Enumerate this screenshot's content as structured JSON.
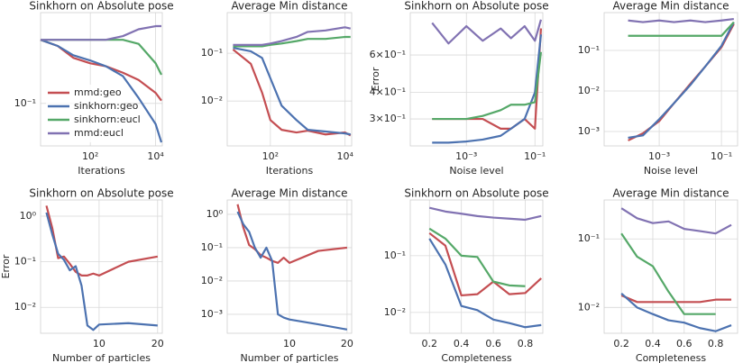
{
  "chart_data": [
    {
      "type": "line",
      "title": "Sinkhorn on Absolute pose",
      "xlabel": "Iterations",
      "xscale": "log",
      "yscale": "log",
      "grid": true,
      "legend": "lower left",
      "x": [
        3,
        10,
        30,
        100,
        300,
        1000,
        3000,
        10000,
        15000
      ],
      "xlim": [
        3,
        16000
      ],
      "ylim": [
        0.048,
        0.48
      ],
      "xticks": [
        {
          "value": 100,
          "label": "10²"
        },
        {
          "value": 10000,
          "label": "10⁴"
        }
      ],
      "yticks": [
        {
          "value": 0.1,
          "label": "10⁻¹"
        }
      ],
      "series": [
        {
          "name": "mmd:geo",
          "color": "#c44e52",
          "values": [
            0.3,
            0.27,
            0.22,
            0.2,
            0.19,
            0.17,
            0.15,
            0.12,
            0.105
          ]
        },
        {
          "name": "sinkhorn:geo",
          "color": "#4c72b0",
          "values": [
            0.3,
            0.27,
            0.23,
            0.21,
            0.19,
            0.16,
            0.11,
            0.07,
            0.051
          ]
        },
        {
          "name": "sinkhorn:eucl",
          "color": "#55a868",
          "values": [
            0.3,
            0.3,
            0.3,
            0.3,
            0.3,
            0.3,
            0.28,
            0.2,
            0.164
          ]
        },
        {
          "name": "mmd:eucl",
          "color": "#8172b2",
          "values": [
            0.3,
            0.3,
            0.3,
            0.3,
            0.3,
            0.32,
            0.36,
            0.38,
            0.38
          ]
        }
      ]
    },
    {
      "type": "line",
      "title": "Average Min distance",
      "xlabel": "Iterations",
      "xscale": "log",
      "yscale": "log",
      "grid": true,
      "x": [
        10,
        30,
        60,
        100,
        200,
        500,
        1000,
        3000,
        10000,
        14000
      ],
      "xlim": [
        7,
        15000
      ],
      "ylim": [
        0.00115,
        0.71
      ],
      "xticks": [
        {
          "value": 100,
          "label": "10²"
        },
        {
          "value": 10000,
          "label": "10⁴"
        }
      ],
      "yticks": [
        {
          "value": 0.1,
          "label": "10⁻¹"
        },
        {
          "value": 0.01,
          "label": "10⁻²"
        }
      ],
      "series": [
        {
          "color": "#c44e52",
          "values": [
            0.12,
            0.06,
            0.015,
            0.004,
            0.0025,
            0.0022,
            0.0024,
            0.002,
            0.0022,
            0.0019
          ]
        },
        {
          "color": "#4c72b0",
          "values": [
            0.13,
            0.11,
            0.08,
            0.03,
            0.008,
            0.004,
            0.0025,
            0.0023,
            0.0021,
            0.002
          ]
        },
        {
          "color": "#55a868",
          "values": [
            0.14,
            0.14,
            0.14,
            0.15,
            0.16,
            0.18,
            0.2,
            0.2,
            0.22,
            0.22
          ]
        },
        {
          "color": "#8172b2",
          "values": [
            0.15,
            0.15,
            0.15,
            0.16,
            0.18,
            0.22,
            0.28,
            0.3,
            0.35,
            0.33
          ]
        }
      ]
    },
    {
      "type": "line",
      "title": "Sinkhorn on Absolute pose",
      "xlabel": "Noise level",
      "ylabel": "Error",
      "xscale": "log",
      "yscale": "log",
      "grid": true,
      "x": [
        0.0001,
        0.0003,
        0.001,
        0.003,
        0.01,
        0.02,
        0.05,
        0.1,
        0.15
      ],
      "xlim": [
        2.3e-05,
        0.17
      ],
      "ylim": [
        0.224,
        0.95
      ],
      "xticks": [
        {
          "value": 0.001,
          "label": "10⁻³"
        },
        {
          "value": 0.1,
          "label": "10⁻¹"
        }
      ],
      "yticks": [
        {
          "value": 0.6,
          "label": "6×10⁻¹"
        },
        {
          "value": 0.4,
          "label": "4×10⁻¹"
        },
        {
          "value": 0.3,
          "label": "3×10⁻¹"
        }
      ],
      "series": [
        {
          "color": "#c44e52",
          "values": [
            0.3,
            0.3,
            0.3,
            0.3,
            0.27,
            0.27,
            0.3,
            0.27,
            0.8
          ]
        },
        {
          "color": "#4c72b0",
          "values": [
            0.232,
            0.232,
            0.235,
            0.24,
            0.25,
            0.27,
            0.3,
            0.4,
            0.75
          ]
        },
        {
          "color": "#55a868",
          "values": [
            0.3,
            0.3,
            0.3,
            0.31,
            0.33,
            0.35,
            0.35,
            0.36,
            0.62
          ]
        },
        {
          "color": "#8172b2",
          "values": [
            0.85,
            0.68,
            0.82,
            0.7,
            0.8,
            0.72,
            0.82,
            0.7,
            0.88
          ]
        }
      ]
    },
    {
      "type": "line",
      "title": "Average Min distance",
      "xlabel": "Noise level",
      "xscale": "log",
      "yscale": "log",
      "grid": true,
      "x": [
        0.0001,
        0.0003,
        0.001,
        0.003,
        0.01,
        0.03,
        0.1,
        0.25
      ],
      "xlim": [
        1.7e-05,
        0.33
      ],
      "ylim": [
        0.00044,
        0.86
      ],
      "xticks": [
        {
          "value": 0.001,
          "label": "10⁻³"
        },
        {
          "value": 0.1,
          "label": "10⁻¹"
        }
      ],
      "yticks": [
        {
          "value": 0.1,
          "label": "10⁻¹"
        },
        {
          "value": 0.01,
          "label": "10⁻²"
        },
        {
          "value": 0.001,
          "label": "10⁻³"
        }
      ],
      "series": [
        {
          "color": "#c44e52",
          "values": [
            0.0006,
            0.0009,
            0.0018,
            0.005,
            0.015,
            0.04,
            0.12,
            0.45
          ]
        },
        {
          "color": "#4c72b0",
          "values": [
            0.0007,
            0.0008,
            0.002,
            0.005,
            0.014,
            0.04,
            0.13,
            0.5
          ]
        },
        {
          "color": "#55a868",
          "values": [
            0.23,
            0.23,
            0.23,
            0.23,
            0.23,
            0.23,
            0.23,
            0.5
          ]
        },
        {
          "color": "#8172b2",
          "values": [
            0.55,
            0.5,
            0.55,
            0.5,
            0.55,
            0.5,
            0.55,
            0.6
          ]
        }
      ]
    },
    {
      "type": "line",
      "title": "Sinkhorn on Absolute pose",
      "xlabel": "Number of particles",
      "ylabel": "Error",
      "xscale": "linear",
      "yscale": "log",
      "grid": true,
      "x": [
        1,
        2,
        3,
        4,
        5,
        6,
        7,
        8,
        9,
        10,
        15,
        20
      ],
      "xlim": [
        0,
        20.8
      ],
      "ylim": [
        0.0027,
        2.27
      ],
      "xticks": [
        10,
        20
      ],
      "yticks": [
        {
          "value": 1,
          "label": "10⁰"
        },
        {
          "value": 0.1,
          "label": "10⁻¹"
        },
        {
          "value": 0.01,
          "label": "10⁻²"
        }
      ],
      "series": [
        {
          "color": "#c44e52",
          "values": [
            1.7,
            0.55,
            0.12,
            0.13,
            0.09,
            0.06,
            0.05,
            0.05,
            0.055,
            0.05,
            0.1,
            0.13
          ]
        },
        {
          "color": "#4c72b0",
          "values": [
            1.2,
            0.4,
            0.15,
            0.11,
            0.065,
            0.08,
            0.03,
            0.004,
            0.0032,
            0.0042,
            0.0045,
            0.004
          ]
        }
      ]
    },
    {
      "type": "line",
      "title": "Average Min distance",
      "xlabel": "Number of particles",
      "xscale": "linear",
      "yscale": "log",
      "grid": true,
      "x": [
        1,
        2,
        3,
        4,
        5,
        6,
        7,
        8,
        9,
        10,
        15,
        20
      ],
      "xlim": [
        -0.8,
        20.8
      ],
      "ylim": [
        0.00027,
        2.7
      ],
      "xticks": [
        10,
        20
      ],
      "yticks": [
        {
          "value": 1,
          "label": "10⁰"
        },
        {
          "value": 0.1,
          "label": "10⁻¹"
        },
        {
          "value": 0.01,
          "label": "10⁻²"
        },
        {
          "value": 0.001,
          "label": "10⁻³"
        }
      ],
      "series": [
        {
          "color": "#c44e52",
          "values": [
            2,
            0.4,
            0.12,
            0.09,
            0.06,
            0.05,
            0.04,
            0.035,
            0.05,
            0.035,
            0.08,
            0.1
          ]
        },
        {
          "color": "#4c72b0",
          "values": [
            1.2,
            0.5,
            0.3,
            0.1,
            0.05,
            0.1,
            0.04,
            0.001,
            0.0008,
            0.0007,
            0.0005,
            0.00035
          ]
        }
      ]
    },
    {
      "type": "line",
      "title": "Sinkhorn on Absolute pose",
      "xlabel": "Completeness",
      "xscale": "linear",
      "yscale": "log",
      "grid": true,
      "x": [
        0.2,
        0.3,
        0.4,
        0.5,
        0.6,
        0.7,
        0.8,
        0.9
      ],
      "xlim": [
        0.08,
        0.91
      ],
      "ylim": [
        0.0043,
        0.96
      ],
      "xticks": [
        0.2,
        0.4,
        0.6,
        0.8
      ],
      "yticks": [
        {
          "value": 0.1,
          "label": "10⁻¹"
        },
        {
          "value": 0.01,
          "label": "10⁻²"
        }
      ],
      "series": [
        {
          "color": "#c44e52",
          "values": [
            0.25,
            0.15,
            0.02,
            0.021,
            0.035,
            0.021,
            0.022,
            0.04
          ]
        },
        {
          "color": "#4c72b0",
          "values": [
            0.2,
            0.07,
            0.013,
            0.011,
            0.0075,
            0.0065,
            0.0055,
            0.006
          ]
        },
        {
          "color": "#55a868",
          "values": [
            0.3,
            0.2,
            0.1,
            0.095,
            0.035,
            0.03,
            0.029,
            null
          ]
        },
        {
          "color": "#8172b2",
          "values": [
            0.7,
            0.6,
            0.55,
            0.5,
            0.47,
            0.45,
            0.43,
            0.5
          ]
        }
      ]
    },
    {
      "type": "line",
      "title": "Average Min distance",
      "xlabel": "Completeness",
      "xscale": "linear",
      "yscale": "log",
      "grid": true,
      "x": [
        0.2,
        0.3,
        0.4,
        0.5,
        0.6,
        0.7,
        0.8,
        0.9
      ],
      "xlim": [
        0.09,
        0.94
      ],
      "ylim": [
        0.0042,
        0.37
      ],
      "xticks": [
        0.2,
        0.4,
        0.6,
        0.8
      ],
      "yticks": [
        {
          "value": 0.1,
          "label": "10⁻¹"
        },
        {
          "value": 0.01,
          "label": "10⁻²"
        }
      ],
      "series": [
        {
          "color": "#c44e52",
          "values": [
            0.015,
            0.012,
            0.012,
            0.012,
            0.012,
            0.012,
            0.013,
            0.013
          ]
        },
        {
          "color": "#4c72b0",
          "values": [
            0.016,
            0.01,
            0.008,
            0.0065,
            0.006,
            0.005,
            0.0045,
            0.0055
          ]
        },
        {
          "color": "#55a868",
          "values": [
            0.12,
            0.055,
            0.04,
            0.017,
            0.008,
            0.008,
            0.008,
            null
          ]
        },
        {
          "color": "#8172b2",
          "values": [
            0.28,
            0.2,
            0.17,
            0.18,
            0.14,
            0.13,
            0.12,
            0.16
          ]
        }
      ]
    }
  ]
}
